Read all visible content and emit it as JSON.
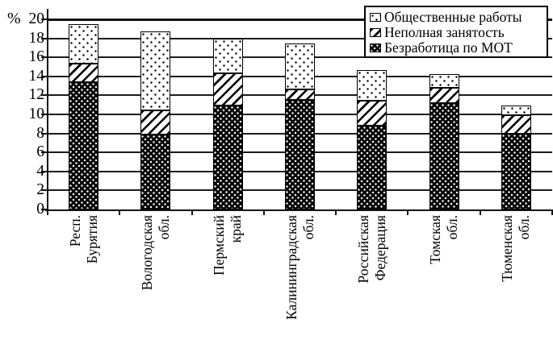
{
  "chart_data": {
    "type": "bar",
    "stacked": true,
    "title": "",
    "ylabel": "%",
    "ylim": [
      0,
      20
    ],
    "ytick_step": 2,
    "grid": true,
    "legend_position": "top-right",
    "categories": [
      "Респ. Бурятия",
      "Вологодская обл.",
      "Пермский край",
      "Калининградская обл.",
      "Российская Федерация",
      "Томская обл.",
      "Тюменская обл."
    ],
    "category_label_lines": [
      [
        "Респ.",
        "Бурятия"
      ],
      [
        "Вологодская",
        "обл."
      ],
      [
        "Пермский",
        "край"
      ],
      [
        "Калининградская",
        "обл."
      ],
      [
        "Российская",
        "Федерация"
      ],
      [
        "Томская",
        "обл."
      ],
      [
        "Тюменская",
        "обл."
      ]
    ],
    "series": [
      {
        "name": "Безработица по МОТ",
        "pattern": "dense-white-dots-on-black",
        "values": [
          13.4,
          7.9,
          10.9,
          11.5,
          8.8,
          11.2,
          8.0
        ]
      },
      {
        "name": "Неполная занятость",
        "pattern": "diagonal-hatch",
        "values": [
          1.9,
          2.5,
          3.4,
          1.1,
          2.6,
          1.6,
          1.9
        ]
      },
      {
        "name": "Общественные работы",
        "pattern": "sparse-black-dots-on-white",
        "values": [
          4.2,
          8.3,
          3.7,
          4.9,
          3.3,
          1.4,
          1.0
        ]
      }
    ],
    "stack_totals": [
      19.5,
      18.7,
      18.0,
      17.5,
      14.7,
      14.2,
      10.9
    ],
    "legend_order": [
      "Общественные работы",
      "Неполная занятость",
      "Безработица по МОТ"
    ],
    "colors": {
      "foreground": "#000000",
      "background": "#ffffff"
    }
  }
}
